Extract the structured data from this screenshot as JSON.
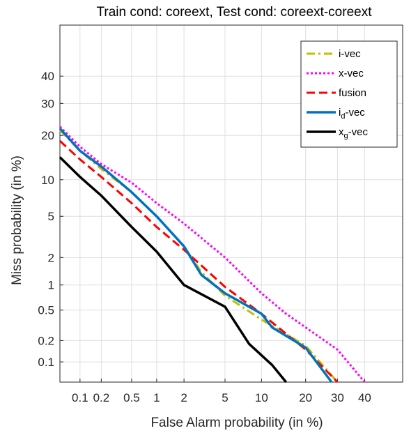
{
  "chart_data": {
    "type": "line",
    "subtype": "DET curve (normal-deviate scaled axes)",
    "title": "Train cond: coreext, Test cond: coreext-coreext",
    "xlabel": "False Alarm probability (in %)",
    "ylabel": "Miss probability (in %)",
    "xlim": [
      0.05,
      55
    ],
    "ylim": [
      0.05,
      60
    ],
    "x_ticks": [
      {
        "value": 0.1,
        "label": "0.1"
      },
      {
        "value": 0.2,
        "label": "0.2"
      },
      {
        "value": 0.5,
        "label": "0.5"
      },
      {
        "value": 1,
        "label": "1"
      },
      {
        "value": 2,
        "label": "2"
      },
      {
        "value": 5,
        "label": "5"
      },
      {
        "value": 10,
        "label": "10"
      },
      {
        "value": 20,
        "label": "20"
      },
      {
        "value": 30,
        "label": "30"
      },
      {
        "value": 40,
        "label": "40"
      }
    ],
    "y_ticks": [
      {
        "value": 0.1,
        "label": "0.1"
      },
      {
        "value": 0.2,
        "label": "0.2"
      },
      {
        "value": 0.5,
        "label": "0.5"
      },
      {
        "value": 1,
        "label": "1"
      },
      {
        "value": 2,
        "label": "2"
      },
      {
        "value": 5,
        "label": "5"
      },
      {
        "value": 10,
        "label": "10"
      },
      {
        "value": 20,
        "label": "20"
      },
      {
        "value": 30,
        "label": "30"
      },
      {
        "value": 40,
        "label": "40"
      }
    ],
    "grid": true,
    "legend_position": "top-right",
    "series": [
      {
        "name": "i-vec",
        "color": "#c0bf00",
        "dash": "dashdot",
        "width": 3,
        "points": [
          [
            0.05,
            21.5
          ],
          [
            0.1,
            16
          ],
          [
            0.2,
            12
          ],
          [
            0.5,
            8
          ],
          [
            1,
            5
          ],
          [
            2,
            2.6
          ],
          [
            3,
            1.4
          ],
          [
            5,
            0.75
          ],
          [
            10,
            0.38
          ],
          [
            20,
            0.17
          ],
          [
            30,
            0.05
          ]
        ]
      },
      {
        "name": "x-vec",
        "color": "#ff00ff",
        "dash": "dot",
        "width": 3,
        "points": [
          [
            0.05,
            22.5
          ],
          [
            0.1,
            17
          ],
          [
            0.2,
            13
          ],
          [
            0.5,
            9.5
          ],
          [
            1,
            6.5
          ],
          [
            2,
            4.3
          ],
          [
            5,
            2
          ],
          [
            10,
            0.8
          ],
          [
            15,
            0.45
          ],
          [
            20,
            0.3
          ],
          [
            30,
            0.15
          ],
          [
            40,
            0.05
          ]
        ]
      },
      {
        "name": "fusion",
        "color": "#ff0000",
        "dash": "dash",
        "width": 3,
        "points": [
          [
            0.05,
            18.5
          ],
          [
            0.1,
            14
          ],
          [
            0.2,
            10.5
          ],
          [
            0.5,
            6.5
          ],
          [
            1,
            4
          ],
          [
            2,
            2.4
          ],
          [
            5,
            0.95
          ],
          [
            10,
            0.45
          ],
          [
            20,
            0.15
          ],
          [
            30,
            0.05
          ]
        ]
      },
      {
        "name": "i_d-vec",
        "label_main": "i",
        "label_sub": "d",
        "label_rest": "-vec",
        "color": "#0072bd",
        "dash": "solid",
        "width": 3.5,
        "points": [
          [
            0.05,
            22
          ],
          [
            0.1,
            16
          ],
          [
            0.2,
            12.5
          ],
          [
            0.5,
            8
          ],
          [
            1,
            5
          ],
          [
            2,
            2.6
          ],
          [
            3,
            1.3
          ],
          [
            5,
            0.8
          ],
          [
            8,
            0.55
          ],
          [
            10,
            0.45
          ],
          [
            12,
            0.3
          ],
          [
            20,
            0.16
          ],
          [
            28,
            0.05
          ]
        ]
      },
      {
        "name": "x_g-vec",
        "label_main": "x",
        "label_sub": "g",
        "label_rest": "-vec",
        "color": "#000000",
        "dash": "solid",
        "width": 3.5,
        "points": [
          [
            0.05,
            14.5
          ],
          [
            0.1,
            10.5
          ],
          [
            0.2,
            7.5
          ],
          [
            0.5,
            4
          ],
          [
            1,
            2.3
          ],
          [
            2,
            1
          ],
          [
            5,
            0.55
          ],
          [
            8,
            0.18
          ],
          [
            12,
            0.09
          ],
          [
            15,
            0.05
          ]
        ]
      }
    ]
  }
}
